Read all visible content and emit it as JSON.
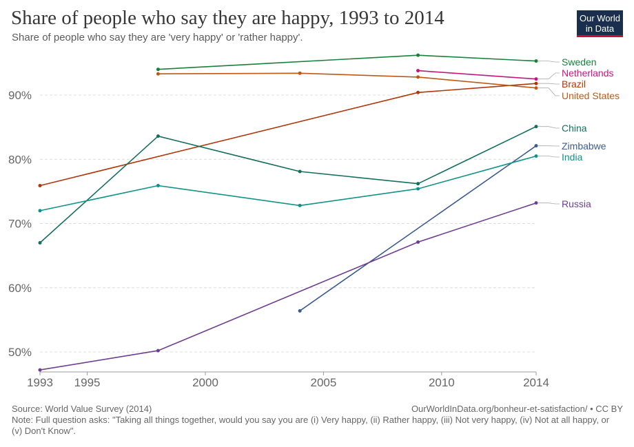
{
  "header": {
    "title": "Share of people who say they are happy, 1993 to 2014",
    "subtitle": "Share of people who say they are 'very happy' or 'rather happy'.",
    "logo_line1": "Our World",
    "logo_line2": "in Data"
  },
  "footer": {
    "source": "Source: World Value Survey (2014)",
    "citation": "OurWorldInData.org/bonheur-et-satisfaction/ • CC BY",
    "note": "Note: Full question asks: \"Taking all things together, would you say you are (i) Very happy, (ii) Rather happy, (iii) Not very happy, (iv) Not at all happy, or (v) Don't Know\"."
  },
  "colors": {
    "logo_bg": "#1a2e4e",
    "logo_accent": "#c8102e"
  },
  "chart_data": {
    "type": "line",
    "title": "Share of people who say they are happy, 1993 to 2014",
    "subtitle": "Share of people who say they are 'very happy' or 'rather happy'.",
    "xlim": [
      1993,
      2014
    ],
    "ylim": [
      47,
      97
    ],
    "x_ticks": [
      1993,
      1995,
      2000,
      2005,
      2010,
      2014
    ],
    "y_ticks": [
      50,
      60,
      70,
      80,
      90
    ],
    "y_tick_labels": [
      "50%",
      "60%",
      "70%",
      "80%",
      "90%"
    ],
    "grid": "horizontal dashed",
    "legend": "right, labels at line ends",
    "series": [
      {
        "name": "Sweden",
        "color": "#18803b",
        "points": [
          [
            1998,
            94.0
          ],
          [
            2009,
            96.2
          ],
          [
            2014,
            95.3
          ]
        ]
      },
      {
        "name": "Netherlands",
        "color": "#c4167e",
        "points": [
          [
            2009,
            93.8
          ],
          [
            2014,
            92.5
          ]
        ]
      },
      {
        "name": "Brazil",
        "color": "#b13507",
        "points": [
          [
            1993,
            75.9
          ],
          [
            2009,
            90.4
          ],
          [
            2014,
            91.8
          ]
        ]
      },
      {
        "name": "United States",
        "color": "#be5915",
        "points": [
          [
            1998,
            93.3
          ],
          [
            2004,
            93.4
          ],
          [
            2009,
            92.8
          ],
          [
            2014,
            91.1
          ]
        ]
      },
      {
        "name": "China",
        "color": "#156f5c",
        "points": [
          [
            1993,
            67.0
          ],
          [
            1998,
            83.6
          ],
          [
            2004,
            78.1
          ],
          [
            2009,
            76.2
          ],
          [
            2014,
            85.1
          ]
        ]
      },
      {
        "name": "Zimbabwe",
        "color": "#3c5a8f",
        "points": [
          [
            2004,
            56.4
          ],
          [
            2014,
            82.1
          ]
        ]
      },
      {
        "name": "India",
        "color": "#109287",
        "points": [
          [
            1993,
            72.0
          ],
          [
            1998,
            75.9
          ],
          [
            2004,
            72.8
          ],
          [
            2009,
            75.4
          ],
          [
            2014,
            80.5
          ]
        ]
      },
      {
        "name": "Russia",
        "color": "#6d3e91",
        "points": [
          [
            1993,
            47.2
          ],
          [
            1998,
            50.2
          ],
          [
            2009,
            67.1
          ],
          [
            2014,
            73.2
          ]
        ]
      }
    ]
  }
}
